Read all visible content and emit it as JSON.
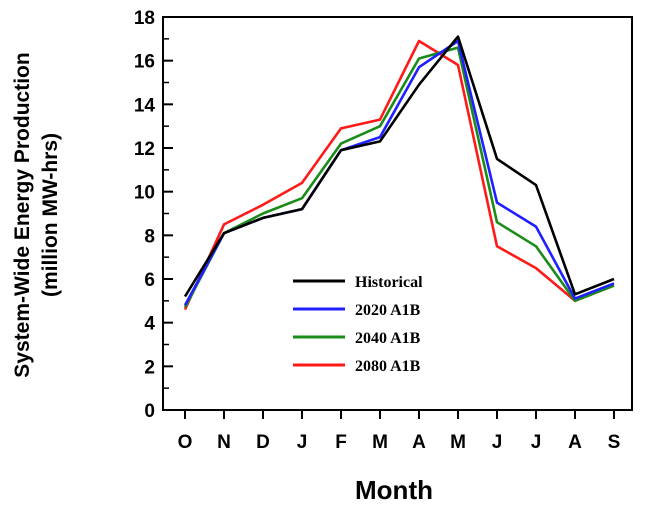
{
  "chart_data": {
    "type": "line",
    "title": "",
    "xlabel": "Month",
    "ylabel_line1": "System-Wide Energy Production",
    "ylabel_line2": "(million MW-hrs)",
    "categories": [
      "O",
      "N",
      "D",
      "J",
      "F",
      "M",
      "A",
      "M",
      "J",
      "J",
      "A",
      "S"
    ],
    "ylim": [
      0,
      18
    ],
    "yticks": [
      "0",
      "2",
      "4",
      "6",
      "8",
      "10",
      "12",
      "14",
      "16",
      "18"
    ],
    "grid": false,
    "legend_position": "lower-center",
    "series": [
      {
        "name": "Historical",
        "color": "#000000",
        "values": [
          5.2,
          8.1,
          8.8,
          9.2,
          11.9,
          12.3,
          14.9,
          17.1,
          11.5,
          10.3,
          5.3,
          6.0
        ]
      },
      {
        "name": "2020 A1B",
        "color": "#1f1fff",
        "values": [
          4.8,
          8.1,
          8.8,
          9.2,
          11.9,
          12.5,
          15.7,
          16.9,
          9.5,
          8.4,
          5.1,
          5.8
        ]
      },
      {
        "name": "2040 A1B",
        "color": "#1a8c1a",
        "values": [
          4.7,
          8.1,
          9.0,
          9.7,
          12.2,
          13.0,
          16.1,
          16.6,
          8.6,
          7.5,
          5.0,
          5.7
        ]
      },
      {
        "name": "2080 A1B",
        "color": "#ff1a1a",
        "values": [
          4.6,
          8.5,
          9.4,
          10.4,
          12.9,
          13.3,
          16.9,
          15.8,
          7.5,
          6.5,
          5.0,
          5.7
        ]
      }
    ]
  }
}
